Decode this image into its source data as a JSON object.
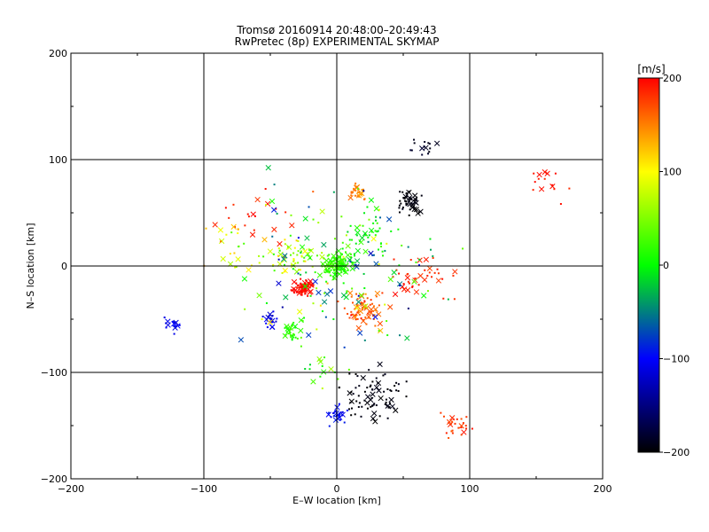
{
  "chart_data": {
    "type": "scatter",
    "title": "Tromsø 20160914 20:48:00–20:49:43",
    "subtitle": "RwPretec (8p) EXPERIMENTAL SKYMAP",
    "xlabel": "E–W location [km]",
    "ylabel": "N–S location [km]",
    "xlim": [
      -200,
      200
    ],
    "ylim": [
      -200,
      200
    ],
    "x_ticks": [
      -200,
      -100,
      0,
      100,
      200
    ],
    "y_ticks": [
      -200,
      -100,
      0,
      100,
      200
    ],
    "grid": true,
    "colorbar": {
      "label": "[m/s]",
      "range": [
        -200,
        200
      ],
      "ticks": [
        200,
        100,
        0,
        -100,
        -200
      ]
    },
    "marker_types": [
      "cross (x)",
      "small dot"
    ],
    "clusters": [
      {
        "x": -25,
        "y": -20,
        "n": 70,
        "spread": 7,
        "v": 195,
        "dv": 15
      },
      {
        "x": 0,
        "y": 0,
        "n": 120,
        "spread": 12,
        "v": 20,
        "dv": 25
      },
      {
        "x": -30,
        "y": 10,
        "n": 50,
        "spread": 14,
        "v": 60,
        "dv": 120
      },
      {
        "x": 20,
        "y": -40,
        "n": 70,
        "spread": 14,
        "v": 170,
        "dv": 40
      },
      {
        "x": 25,
        "y": 30,
        "n": 40,
        "spread": 18,
        "v": 0,
        "dv": 40
      },
      {
        "x": 15,
        "y": 70,
        "n": 30,
        "spread": 6,
        "v": 150,
        "dv": 20
      },
      {
        "x": 55,
        "y": 60,
        "n": 50,
        "spread": 10,
        "v": -195,
        "dv": 10
      },
      {
        "x": 65,
        "y": 110,
        "n": 15,
        "spread": 8,
        "v": -190,
        "dv": 15
      },
      {
        "x": -50,
        "y": -50,
        "n": 20,
        "spread": 6,
        "v": -110,
        "dv": 20
      },
      {
        "x": -35,
        "y": -62,
        "n": 30,
        "spread": 8,
        "v": 20,
        "dv": 30
      },
      {
        "x": 30,
        "y": -120,
        "n": 80,
        "spread": 22,
        "v": -195,
        "dv": 10
      },
      {
        "x": 0,
        "y": -140,
        "n": 30,
        "spread": 8,
        "v": -100,
        "dv": 30
      },
      {
        "x": -125,
        "y": -55,
        "n": 15,
        "spread": 6,
        "v": -110,
        "dv": 20
      },
      {
        "x": 90,
        "y": -150,
        "n": 25,
        "spread": 10,
        "v": 180,
        "dv": 20
      },
      {
        "x": 60,
        "y": -10,
        "n": 40,
        "spread": 22,
        "v": 185,
        "dv": 20
      },
      {
        "x": -60,
        "y": 50,
        "n": 20,
        "spread": 22,
        "v": 190,
        "dv": 20
      },
      {
        "x": -80,
        "y": 20,
        "n": 25,
        "spread": 22,
        "v": 100,
        "dv": 100
      },
      {
        "x": 160,
        "y": 80,
        "n": 15,
        "spread": 18,
        "v": 190,
        "dv": 15
      },
      {
        "x": -10,
        "y": -100,
        "n": 15,
        "spread": 15,
        "v": 20,
        "dv": 100
      },
      {
        "x": 0,
        "y": 0,
        "n": 150,
        "spread": 70,
        "v": 0,
        "dv": 200
      }
    ]
  }
}
